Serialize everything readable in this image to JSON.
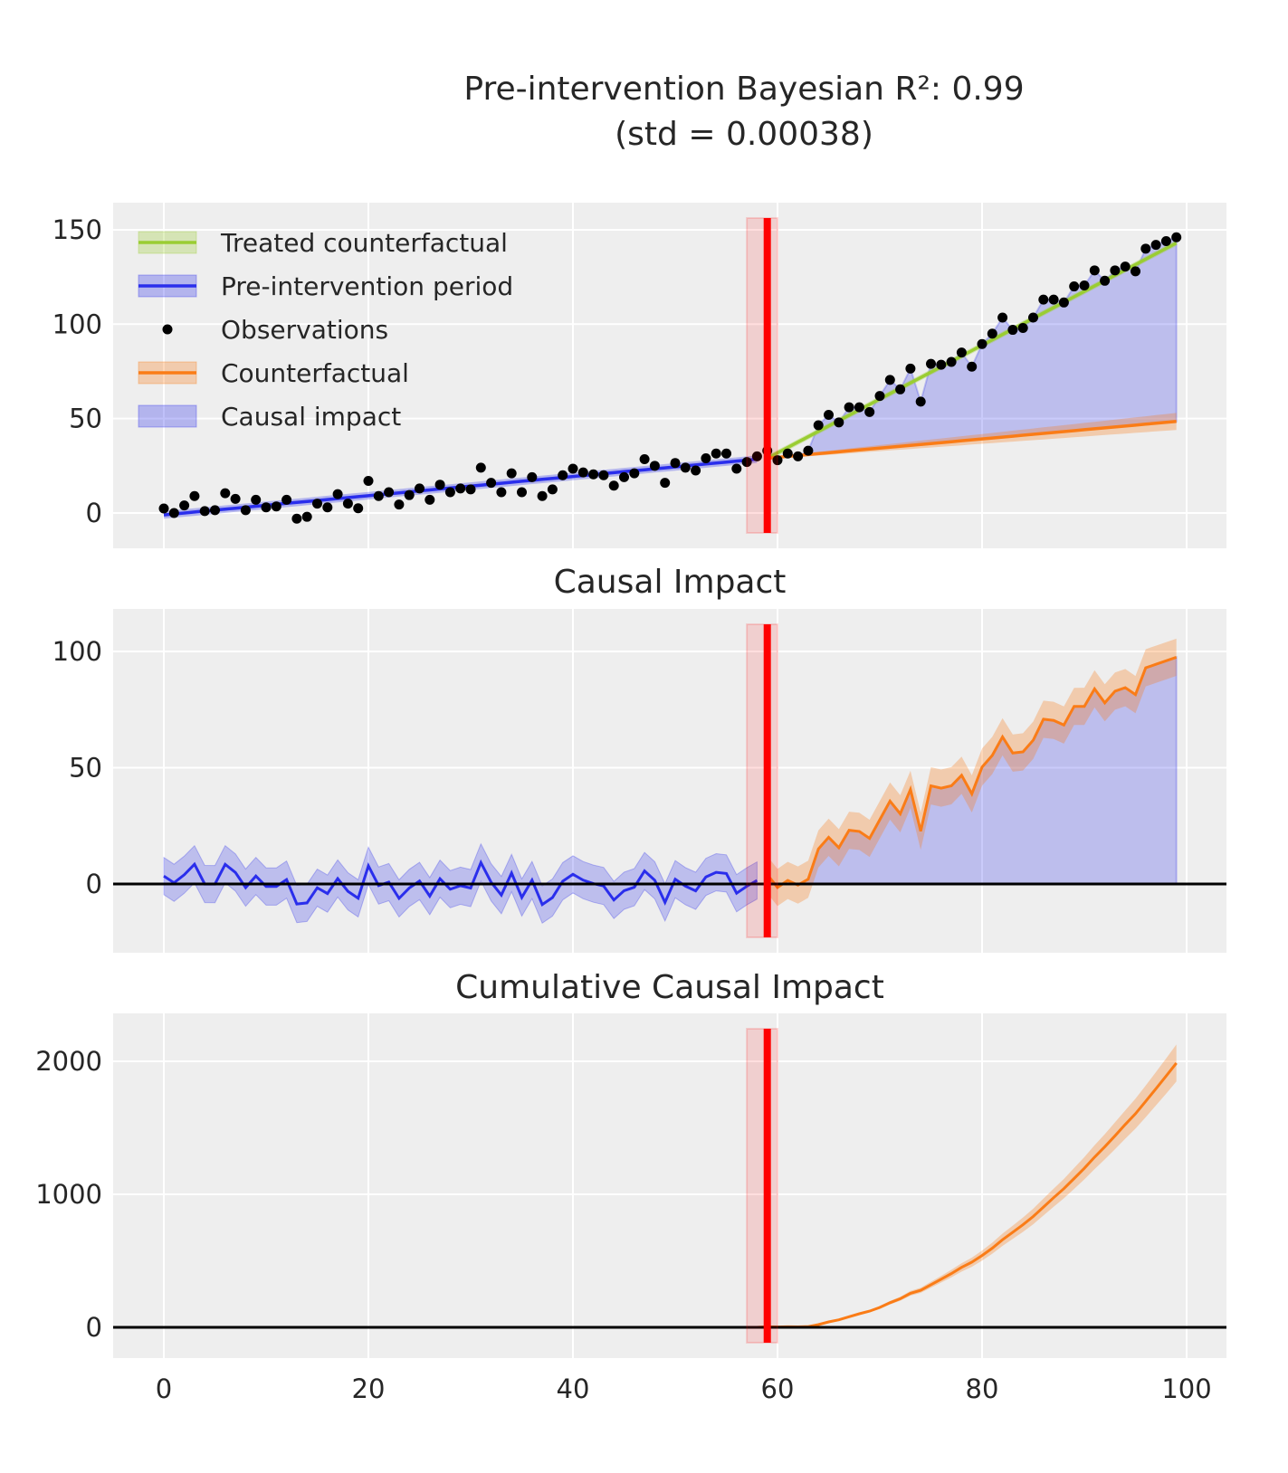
{
  "chart_data": {
    "type": "line",
    "title_line1": "Pre-intervention Bayesian R²: 0.99",
    "title_line2": "(std = 0.00038)",
    "intervention_x": 59,
    "intervention_band": [
      57,
      60
    ],
    "x_range": [
      0,
      99
    ],
    "x_ticks": [
      0,
      20,
      40,
      60,
      80,
      100
    ],
    "observations": [
      2.4,
      0,
      4,
      9,
      1,
      1.5,
      10.5,
      7.5,
      1.5,
      7,
      3,
      3.5,
      7,
      -3,
      -2,
      5,
      3,
      10,
      5,
      2.5,
      17,
      9,
      11,
      4.5,
      9.5,
      13,
      7,
      15,
      11,
      13,
      12.5,
      24,
      16,
      11,
      21,
      11,
      19,
      9,
      12.5,
      20,
      23.5,
      21.5,
      20.5,
      20,
      14.5,
      19,
      21,
      28.5,
      25,
      16,
      26.5,
      24,
      22.5,
      29,
      31.5,
      31.5,
      23.5,
      27,
      30,
      33,
      28,
      31.5,
      30,
      33,
      46.5,
      52,
      48,
      56,
      56,
      53.5,
      62,
      70.5,
      65.5,
      76.5,
      59,
      79,
      78.5,
      80,
      85,
      77.5,
      89.5,
      95,
      103.5,
      97,
      98,
      103.5,
      113,
      113,
      111.5,
      120,
      120.5,
      128.5,
      123,
      128.5,
      130.5,
      128,
      140,
      142,
      144,
      146
    ],
    "pre_fit": {
      "start": -1,
      "end": 28.5
    },
    "treated_counterfactual": {
      "start": 29,
      "end": 143
    },
    "counterfactual": {
      "start": 29,
      "end": 48.5,
      "hdi_halfwidth_end": 4.5
    },
    "impact_hdi_halfwidth": 8,
    "panels": [
      {
        "title": "",
        "y_ticks": [
          0,
          50,
          100,
          150
        ],
        "ylim": [
          -19,
          162
        ]
      },
      {
        "title": "Causal Impact",
        "y_ticks": [
          0,
          50,
          100
        ],
        "ylim": [
          -30,
          118
        ]
      },
      {
        "title": "Cumulative Causal Impact",
        "y_ticks": [
          0,
          1000,
          2000
        ],
        "ylim": [
          -230,
          2360
        ]
      }
    ],
    "legend": [
      {
        "label": "Treated counterfactual",
        "color": "#9acd32",
        "kind": "line-band"
      },
      {
        "label": "Pre-intervention period",
        "color": "#2a2eec",
        "kind": "line-band"
      },
      {
        "label": "Observations",
        "color": "#000000",
        "kind": "dot"
      },
      {
        "label": "Counterfactual",
        "color": "#fa7c17",
        "kind": "line-band"
      },
      {
        "label": "Causal impact",
        "color": "#2a2eec",
        "kind": "band"
      }
    ],
    "colors": {
      "bg": "#eeeeee",
      "red": "#ff0000",
      "blue": "#2a2eec",
      "orange": "#fa7c17",
      "green": "#9acd32"
    }
  }
}
